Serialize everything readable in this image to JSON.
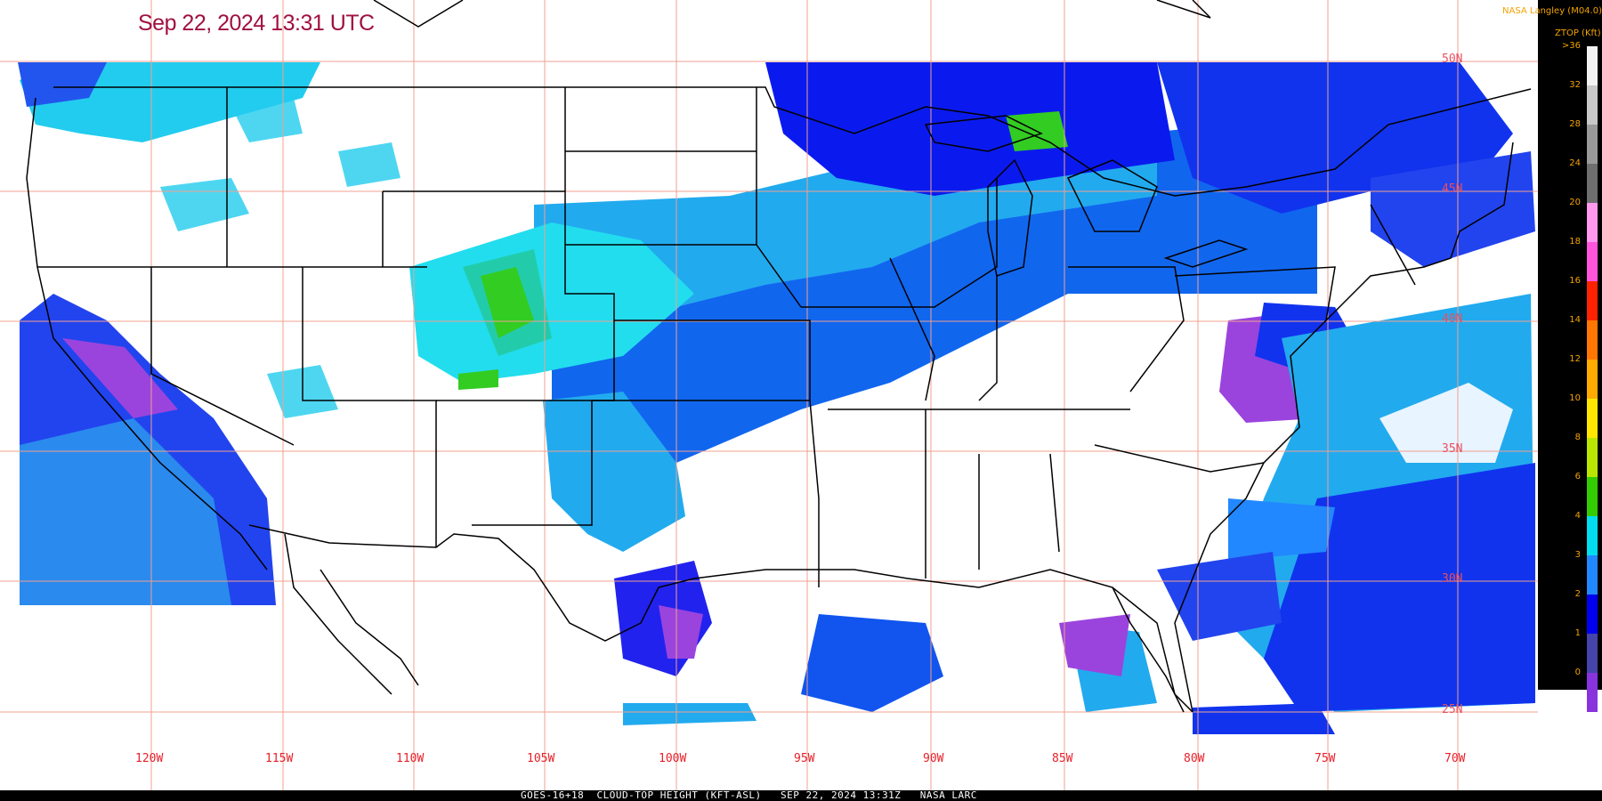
{
  "header": {
    "timestamp": "Sep 22, 2024 13:31 UTC"
  },
  "map": {
    "longitude_labels": [
      "120W",
      "115W",
      "110W",
      "105W",
      "100W",
      "95W",
      "90W",
      "85W",
      "80W",
      "75W",
      "70W"
    ],
    "latitude_labels": [
      "50N",
      "45N",
      "40N",
      "35N",
      "30N",
      "25N"
    ]
  },
  "legend": {
    "credit": "NASA Langley (M04.0)",
    "title": "ZTOP (Kft)",
    "ticks": [
      ">36",
      "32",
      "28",
      "24",
      "20",
      "18",
      "16",
      "14",
      "12",
      "10",
      "8",
      "6",
      "4",
      "3",
      "2",
      "1",
      "0"
    ],
    "colors": [
      "#f2f2f2",
      "#c8c8c8",
      "#9a9a9a",
      "#6e6e6e",
      "#ff99ee",
      "#ff55dd",
      "#ff2200",
      "#ff7700",
      "#ffaa00",
      "#ffe600",
      "#b8e600",
      "#33cc00",
      "#00ddee",
      "#2288ff",
      "#0000ee",
      "#4444aa",
      "#8833dd"
    ]
  },
  "footer": {
    "caption": "GOES-16+18  CLOUD-TOP HEIGHT (KFT-ASL)   SEP 22, 2024 13:31Z   NASA LARC"
  }
}
